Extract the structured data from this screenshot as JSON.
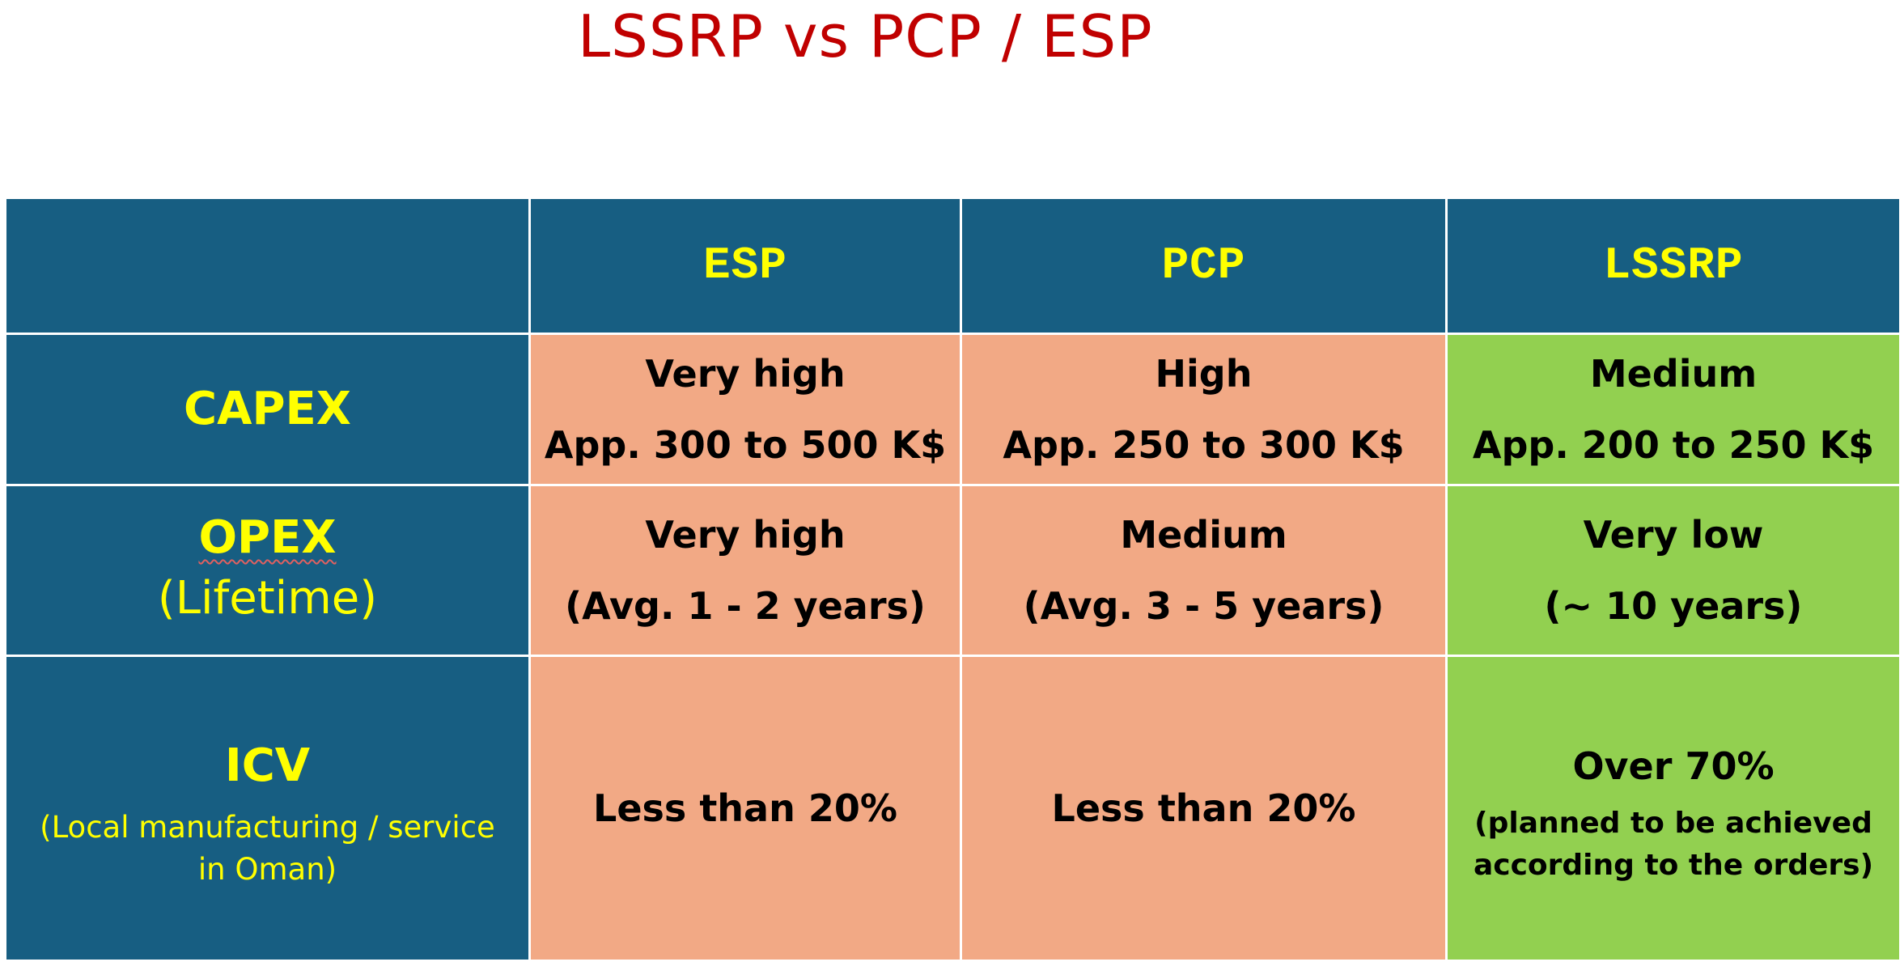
{
  "title": "LSSRP vs PCP / ESP",
  "table": {
    "columns": [
      "",
      "ESP",
      "PCP",
      "LSSRP"
    ],
    "rows": [
      {
        "label": "CAPEX",
        "sublabel": "",
        "cells": [
          {
            "line1": "Very high",
            "line2": "App. 300 to 500 K$"
          },
          {
            "line1": "High",
            "line2": "App. 250 to 300 K$"
          },
          {
            "line1": "Medium",
            "line2": "App. 200 to 250 K$"
          }
        ]
      },
      {
        "label": "OPEX",
        "sublabel": "(Lifetime)",
        "cells": [
          {
            "line1": "Very high",
            "line2": "(Avg. 1 - 2 years)"
          },
          {
            "line1": "Medium",
            "line2": "(Avg. 3 - 5 years)"
          },
          {
            "line1": "Very low",
            "line2": "(~ 10 years)"
          }
        ]
      },
      {
        "label": "ICV",
        "sublabel": "(Local manufacturing / service in Oman)",
        "cells": [
          {
            "line1": "Less than 20%"
          },
          {
            "line1": "Less than 20%"
          },
          {
            "line1": "Over 70%",
            "note": "(planned to be achieved according to the orders)"
          }
        ]
      }
    ]
  },
  "colors": {
    "title": "#c00000",
    "header_bg": "#175e82",
    "header_text": "#ffff00",
    "esp_pcp_bg": "#f2a985",
    "lssrp_bg": "#92d050"
  }
}
